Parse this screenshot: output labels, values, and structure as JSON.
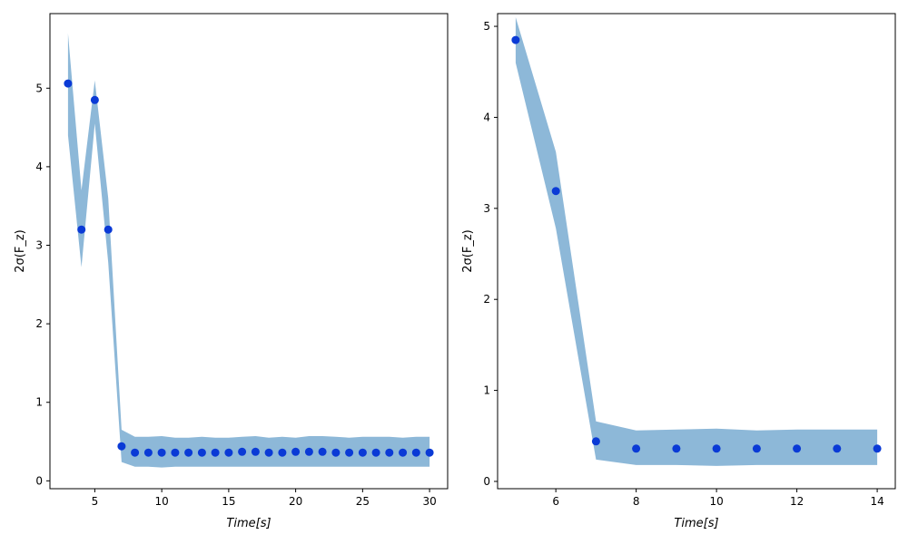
{
  "figure": {
    "background": "#ffffff"
  },
  "chart_data": [
    {
      "type": "scatter",
      "band": true,
      "xlabel": "Time[s]",
      "ylabel": "2σ(F_z)",
      "xlim": [
        1.65,
        31.35
      ],
      "ylim": [
        -0.1,
        5.95
      ],
      "xticks": [
        5,
        10,
        15,
        20,
        25,
        30
      ],
      "yticks": [
        0,
        1,
        2,
        3,
        4,
        5
      ],
      "grid": false,
      "legend": "none",
      "band_color": "#8db8d8",
      "point_color": "#0a3ad6",
      "series": [
        {
          "x": [
            3,
            4,
            5,
            6,
            7,
            8,
            9,
            10,
            11,
            12,
            13,
            14,
            15,
            16,
            17,
            18,
            19,
            20,
            21,
            22,
            23,
            24,
            25,
            26,
            27,
            28,
            29,
            30
          ],
          "y": [
            5.06,
            3.2,
            4.85,
            3.2,
            0.44,
            0.36,
            0.36,
            0.36,
            0.36,
            0.36,
            0.36,
            0.36,
            0.36,
            0.37,
            0.37,
            0.36,
            0.36,
            0.37,
            0.37,
            0.37,
            0.36,
            0.36,
            0.36,
            0.36,
            0.36,
            0.36,
            0.36,
            0.36
          ],
          "y_low": [
            4.4,
            2.72,
            4.55,
            2.78,
            0.24,
            0.18,
            0.18,
            0.17,
            0.18,
            0.18,
            0.18,
            0.18,
            0.18,
            0.18,
            0.18,
            0.18,
            0.18,
            0.18,
            0.18,
            0.18,
            0.18,
            0.18,
            0.18,
            0.18,
            0.18,
            0.18,
            0.18,
            0.18
          ],
          "y_high": [
            5.7,
            3.7,
            5.1,
            3.6,
            0.65,
            0.56,
            0.56,
            0.57,
            0.55,
            0.55,
            0.56,
            0.55,
            0.55,
            0.56,
            0.57,
            0.55,
            0.56,
            0.55,
            0.57,
            0.57,
            0.56,
            0.55,
            0.56,
            0.56,
            0.56,
            0.55,
            0.56,
            0.56
          ]
        }
      ]
    },
    {
      "type": "scatter",
      "band": true,
      "xlabel": "Time[s]",
      "ylabel": "2σ(F_z)",
      "xlim": [
        4.55,
        14.45
      ],
      "ylim": [
        -0.08,
        5.14
      ],
      "xticks": [
        6,
        8,
        10,
        12,
        14
      ],
      "yticks": [
        0,
        1,
        2,
        3,
        4,
        5
      ],
      "grid": false,
      "legend": "none",
      "band_color": "#8db8d8",
      "point_color": "#0a3ad6",
      "series": [
        {
          "x": [
            5,
            6,
            7,
            8,
            9,
            10,
            11,
            12,
            13,
            14
          ],
          "y": [
            4.85,
            3.19,
            0.44,
            0.36,
            0.36,
            0.36,
            0.36,
            0.36,
            0.36,
            0.36
          ],
          "y_low": [
            4.6,
            2.78,
            0.24,
            0.18,
            0.18,
            0.17,
            0.18,
            0.18,
            0.18,
            0.18
          ],
          "y_high": [
            5.1,
            3.62,
            0.66,
            0.56,
            0.57,
            0.58,
            0.56,
            0.57,
            0.57,
            0.57
          ]
        }
      ]
    }
  ]
}
